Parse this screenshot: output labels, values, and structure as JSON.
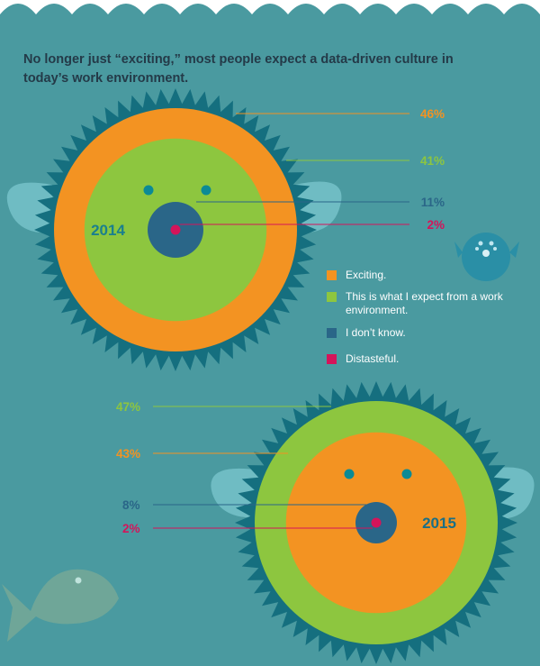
{
  "headline": "No longer just “exciting,” most people expect a data-driven culture in today’s work environment.",
  "colors": {
    "background": "#4a9aa0",
    "exciting": "#f39322",
    "expect": "#8dc63f",
    "dont_know": "#2a6688",
    "distasteful": "#d4145a",
    "spikes": "#156f7f",
    "fin": "#6fbcc3",
    "wave": "#ffffff",
    "eye": "#0b8a95"
  },
  "chart_data": [
    {
      "type": "pie",
      "label": "2014",
      "categories": [
        "Exciting.",
        "This is what I expect from a work environment.",
        "I don’t know.",
        "Distasteful."
      ],
      "values": [
        46,
        41,
        11,
        2
      ],
      "value_labels": [
        "46%",
        "41%",
        "11%",
        "2%"
      ],
      "legend_position": "right"
    },
    {
      "type": "pie",
      "label": "2015",
      "categories": [
        "This is what I expect from a work environment.",
        "Exciting.",
        "I don’t know.",
        "Distasteful."
      ],
      "values": [
        47,
        43,
        8,
        2
      ],
      "value_labels": [
        "47%",
        "43%",
        "8%",
        "2%"
      ],
      "legend_position": "right"
    }
  ],
  "legend": [
    {
      "label": "Exciting.",
      "color": "#f39322"
    },
    {
      "label": "This is what I expect from a work environment.",
      "color": "#8dc63f"
    },
    {
      "label": "I don’t know.",
      "color": "#2a6688"
    },
    {
      "label": "Distasteful.",
      "color": "#d4145a"
    }
  ]
}
